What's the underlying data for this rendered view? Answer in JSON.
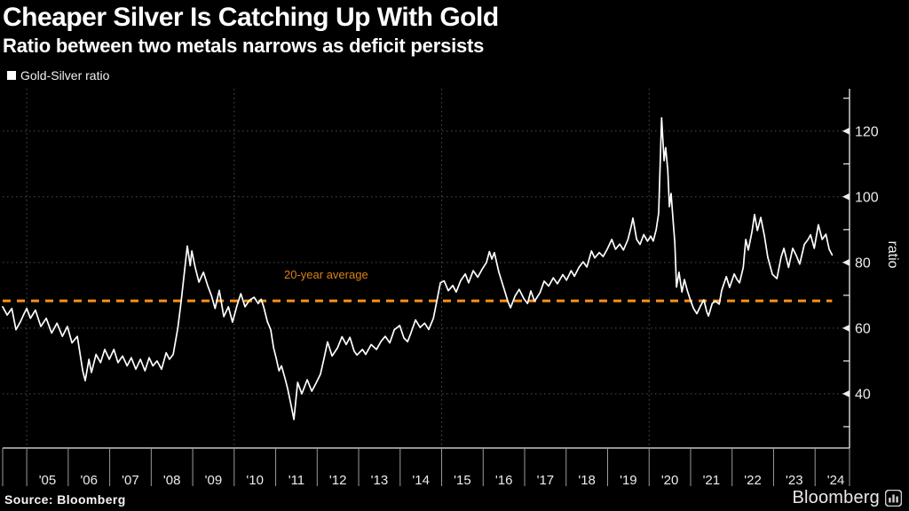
{
  "header": {
    "title": "Cheaper Silver Is Catching Up With Gold",
    "subtitle": "Ratio between two metals narrows as deficit persists"
  },
  "legend": {
    "items": [
      {
        "label": "Gold-Silver ratio",
        "marker_color": "#ffffff"
      }
    ]
  },
  "footer": {
    "source": "Source: Bloomberg",
    "brand": "Bloomberg"
  },
  "colors": {
    "background": "#000000",
    "series_line": "#ffffff",
    "average_line": "#fa9119",
    "average_label": "#d98215",
    "gridline": "#4f4f4f",
    "axis": "#ededed",
    "tick": "#9b9b9b",
    "tick_label": "#ececec"
  },
  "chart_data": {
    "type": "line",
    "title": "Gold-Silver ratio",
    "xlabel": "",
    "ylabel": "ratio",
    "grid": "dotted",
    "legend_position": "top-left",
    "xlim": [
      2004.42,
      2024.83
    ],
    "ylim": [
      23.5,
      132.9
    ],
    "x_tick_years": [
      2005,
      2006,
      2007,
      2008,
      2009,
      2010,
      2011,
      2012,
      2013,
      2014,
      2015,
      2016,
      2017,
      2018,
      2019,
      2020,
      2021,
      2022,
      2023,
      2024
    ],
    "x_tick_labels": [
      "'05",
      "'06",
      "'07",
      "'08",
      "'09",
      "'10",
      "'11",
      "'12",
      "'13",
      "'14",
      "'15",
      "'16",
      "'17",
      "'18",
      "'19",
      "'20",
      "'21",
      "'22",
      "'23",
      "'24"
    ],
    "x_gridline_years": [
      2005,
      2010,
      2015,
      2020
    ],
    "y_major_ticks": [
      40,
      60,
      80,
      100,
      120
    ],
    "y_minor_ticks": [
      30,
      50,
      70,
      90,
      110,
      130
    ],
    "average_line": {
      "label": "20-year average",
      "value": 68.3,
      "style": "dashed",
      "end_year": 2024.41
    },
    "series": [
      {
        "name": "Gold-Silver ratio",
        "color": "#ffffff",
        "points": [
          [
            2004.42,
            66.5
          ],
          [
            2004.53,
            64
          ],
          [
            2004.64,
            66
          ],
          [
            2004.74,
            59.5
          ],
          [
            2004.85,
            62
          ],
          [
            2004.94,
            64.5
          ],
          [
            2005.0,
            66
          ],
          [
            2005.09,
            63
          ],
          [
            2005.21,
            65.5
          ],
          [
            2005.34,
            60.5
          ],
          [
            2005.47,
            63
          ],
          [
            2005.6,
            58.5
          ],
          [
            2005.73,
            61.5
          ],
          [
            2005.86,
            57.5
          ],
          [
            2005.98,
            60.5
          ],
          [
            2006.09,
            55.5
          ],
          [
            2006.22,
            57.5
          ],
          [
            2006.35,
            47
          ],
          [
            2006.41,
            44
          ],
          [
            2006.5,
            50.5
          ],
          [
            2006.56,
            46.5
          ],
          [
            2006.67,
            52
          ],
          [
            2006.78,
            49.5
          ],
          [
            2006.88,
            53.5
          ],
          [
            2006.99,
            50.5
          ],
          [
            2007.1,
            53.5
          ],
          [
            2007.2,
            49.5
          ],
          [
            2007.31,
            51.5
          ],
          [
            2007.42,
            48.5
          ],
          [
            2007.52,
            51
          ],
          [
            2007.63,
            47.5
          ],
          [
            2007.74,
            50.5
          ],
          [
            2007.85,
            47
          ],
          [
            2007.95,
            51
          ],
          [
            2008.04,
            48.5
          ],
          [
            2008.14,
            50
          ],
          [
            2008.25,
            47.5
          ],
          [
            2008.36,
            52.5
          ],
          [
            2008.44,
            50.5
          ],
          [
            2008.53,
            52
          ],
          [
            2008.64,
            60
          ],
          [
            2008.72,
            68
          ],
          [
            2008.79,
            76
          ],
          [
            2008.87,
            85
          ],
          [
            2008.94,
            79
          ],
          [
            2008.98,
            83.5
          ],
          [
            2009.06,
            78.5
          ],
          [
            2009.15,
            74
          ],
          [
            2009.26,
            77
          ],
          [
            2009.36,
            73
          ],
          [
            2009.45,
            70
          ],
          [
            2009.54,
            66
          ],
          [
            2009.64,
            71.5
          ],
          [
            2009.75,
            63.5
          ],
          [
            2009.86,
            66.5
          ],
          [
            2009.96,
            61.8
          ],
          [
            2010.07,
            67
          ],
          [
            2010.16,
            70.5
          ],
          [
            2010.26,
            66.5
          ],
          [
            2010.37,
            68.5
          ],
          [
            2010.48,
            69.4
          ],
          [
            2010.58,
            67.5
          ],
          [
            2010.65,
            68.8
          ],
          [
            2010.71,
            66.5
          ],
          [
            2010.8,
            62
          ],
          [
            2010.88,
            59.5
          ],
          [
            2010.95,
            54
          ],
          [
            2011.01,
            51
          ],
          [
            2011.08,
            47
          ],
          [
            2011.14,
            48.5
          ],
          [
            2011.23,
            44.5
          ],
          [
            2011.29,
            41.5
          ],
          [
            2011.38,
            36
          ],
          [
            2011.44,
            32.2
          ],
          [
            2011.53,
            43.5
          ],
          [
            2011.63,
            40
          ],
          [
            2011.76,
            44.3
          ],
          [
            2011.87,
            40.8
          ],
          [
            2011.97,
            43.2
          ],
          [
            2012.08,
            46
          ],
          [
            2012.17,
            51
          ],
          [
            2012.25,
            55.8
          ],
          [
            2012.36,
            51.5
          ],
          [
            2012.49,
            54
          ],
          [
            2012.6,
            57.4
          ],
          [
            2012.7,
            55
          ],
          [
            2012.79,
            57.2
          ],
          [
            2012.89,
            53
          ],
          [
            2012.96,
            51.8
          ],
          [
            2013.09,
            53.5
          ],
          [
            2013.17,
            52
          ],
          [
            2013.3,
            55
          ],
          [
            2013.43,
            53.5
          ],
          [
            2013.54,
            56
          ],
          [
            2013.64,
            57.5
          ],
          [
            2013.75,
            55.5
          ],
          [
            2013.86,
            59.5
          ],
          [
            2013.99,
            60.8
          ],
          [
            2014.09,
            57
          ],
          [
            2014.18,
            55.9
          ],
          [
            2014.26,
            58.5
          ],
          [
            2014.37,
            62.5
          ],
          [
            2014.48,
            60.2
          ],
          [
            2014.59,
            61.5
          ],
          [
            2014.69,
            59.6
          ],
          [
            2014.8,
            63
          ],
          [
            2014.88,
            68
          ],
          [
            2014.97,
            73.8
          ],
          [
            2015.06,
            74.4
          ],
          [
            2015.16,
            71.4
          ],
          [
            2015.27,
            73
          ],
          [
            2015.35,
            71
          ],
          [
            2015.46,
            74.5
          ],
          [
            2015.57,
            76.5
          ],
          [
            2015.65,
            73.8
          ],
          [
            2015.76,
            77.5
          ],
          [
            2015.87,
            75.5
          ],
          [
            2015.98,
            78
          ],
          [
            2016.08,
            80
          ],
          [
            2016.15,
            83.3
          ],
          [
            2016.21,
            81
          ],
          [
            2016.27,
            83
          ],
          [
            2016.38,
            77
          ],
          [
            2016.49,
            72.5
          ],
          [
            2016.6,
            68
          ],
          [
            2016.66,
            66.2
          ],
          [
            2016.77,
            69.8
          ],
          [
            2016.87,
            71.8
          ],
          [
            2016.98,
            69
          ],
          [
            2017.07,
            67.5
          ],
          [
            2017.15,
            71.3
          ],
          [
            2017.24,
            68.2
          ],
          [
            2017.37,
            70.8
          ],
          [
            2017.47,
            74.3
          ],
          [
            2017.58,
            72.8
          ],
          [
            2017.69,
            75.3
          ],
          [
            2017.79,
            73.5
          ],
          [
            2017.92,
            76.3
          ],
          [
            2018.01,
            74.6
          ],
          [
            2018.12,
            77.5
          ],
          [
            2018.2,
            75.8
          ],
          [
            2018.31,
            78.5
          ],
          [
            2018.41,
            80.2
          ],
          [
            2018.5,
            78.6
          ],
          [
            2018.61,
            83.5
          ],
          [
            2018.69,
            81.4
          ],
          [
            2018.8,
            83
          ],
          [
            2018.89,
            81.8
          ],
          [
            2018.99,
            84
          ],
          [
            2019.1,
            87
          ],
          [
            2019.19,
            84
          ],
          [
            2019.29,
            85.6
          ],
          [
            2019.38,
            83.8
          ],
          [
            2019.49,
            87
          ],
          [
            2019.57,
            91
          ],
          [
            2019.61,
            93.5
          ],
          [
            2019.7,
            87
          ],
          [
            2019.78,
            85.5
          ],
          [
            2019.87,
            88.5
          ],
          [
            2019.96,
            86.5
          ],
          [
            2020.04,
            88
          ],
          [
            2020.1,
            86.5
          ],
          [
            2020.17,
            90
          ],
          [
            2020.23,
            95
          ],
          [
            2020.3,
            124
          ],
          [
            2020.36,
            111
          ],
          [
            2020.4,
            115
          ],
          [
            2020.45,
            108
          ],
          [
            2020.49,
            97
          ],
          [
            2020.53,
            101
          ],
          [
            2020.57,
            94
          ],
          [
            2020.62,
            86
          ],
          [
            2020.66,
            72.5
          ],
          [
            2020.72,
            77
          ],
          [
            2020.79,
            71
          ],
          [
            2020.85,
            74.8
          ],
          [
            2020.92,
            71.5
          ],
          [
            2021.0,
            68.3
          ],
          [
            2021.07,
            66
          ],
          [
            2021.15,
            64.4
          ],
          [
            2021.24,
            66.8
          ],
          [
            2021.32,
            68.6
          ],
          [
            2021.39,
            65
          ],
          [
            2021.43,
            63.7
          ],
          [
            2021.52,
            67.5
          ],
          [
            2021.6,
            68.2
          ],
          [
            2021.69,
            67.3
          ],
          [
            2021.75,
            71.5
          ],
          [
            2021.86,
            75.7
          ],
          [
            2021.94,
            72.4
          ],
          [
            2022.05,
            76.5
          ],
          [
            2022.12,
            74.8
          ],
          [
            2022.18,
            73.8
          ],
          [
            2022.27,
            78.5
          ],
          [
            2022.33,
            87
          ],
          [
            2022.39,
            83.8
          ],
          [
            2022.48,
            89.5
          ],
          [
            2022.54,
            94.6
          ],
          [
            2022.61,
            89.7
          ],
          [
            2022.69,
            93.7
          ],
          [
            2022.78,
            88
          ],
          [
            2022.86,
            81.6
          ],
          [
            2022.97,
            76.4
          ],
          [
            2023.08,
            75.1
          ],
          [
            2023.18,
            81.6
          ],
          [
            2023.25,
            84.3
          ],
          [
            2023.36,
            78.5
          ],
          [
            2023.46,
            84.3
          ],
          [
            2023.55,
            82
          ],
          [
            2023.63,
            79.5
          ],
          [
            2023.74,
            85.5
          ],
          [
            2023.83,
            87
          ],
          [
            2023.89,
            88.4
          ],
          [
            2023.98,
            84.3
          ],
          [
            2024.08,
            91.5
          ],
          [
            2024.17,
            87
          ],
          [
            2024.26,
            88.6
          ],
          [
            2024.34,
            84
          ],
          [
            2024.41,
            82.3
          ]
        ]
      }
    ]
  }
}
